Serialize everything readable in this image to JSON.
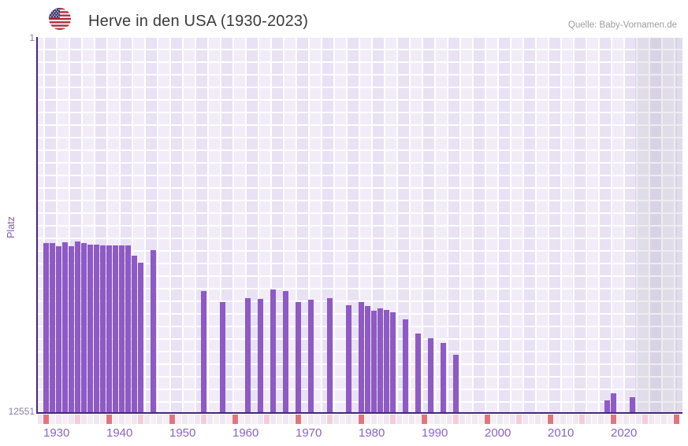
{
  "header": {
    "title": "Herve in den USA (1930-2023)",
    "source": "Quelle: Baby-Vornamen.de",
    "flag_icon": "us-flag-icon"
  },
  "chart_data": {
    "type": "bar",
    "title": "Herve in den USA (1930-2023)",
    "ylabel": "Platz",
    "xlabel": "",
    "y_axis": {
      "min": 1,
      "max": 12551,
      "inverted": true,
      "top_tick": "1",
      "bottom_tick": "12551"
    },
    "x_tick_labels": [
      "1930",
      "1940",
      "1950",
      "1960",
      "1970",
      "1980",
      "1990",
      "2000",
      "2010",
      "2020"
    ],
    "x_range": [
      1930,
      2030
    ],
    "future_region_start": 2024,
    "legend": "none",
    "grid": "plaid-lavender",
    "colors": {
      "bar": "#8e5ac4",
      "axis": "#44277d",
      "decade_marker": "#e5737e",
      "half_decade_marker": "#f3ccd9",
      "grid_light": "#f2ecf9",
      "grid_dark": "#e9e1f4",
      "x_tick_text": "#8a63c3",
      "y_tick_text": "#8d7aab"
    },
    "points": [
      {
        "year": 1930,
        "rank": 6870
      },
      {
        "year": 1931,
        "rank": 6870
      },
      {
        "year": 1932,
        "rank": 6975
      },
      {
        "year": 1933,
        "rank": 6845
      },
      {
        "year": 1934,
        "rank": 6975
      },
      {
        "year": 1935,
        "rank": 6820
      },
      {
        "year": 1936,
        "rank": 6895
      },
      {
        "year": 1937,
        "rank": 6925
      },
      {
        "year": 1938,
        "rank": 6925
      },
      {
        "year": 1939,
        "rank": 6950
      },
      {
        "year": 1940,
        "rank": 6950
      },
      {
        "year": 1941,
        "rank": 6950
      },
      {
        "year": 1942,
        "rank": 6950
      },
      {
        "year": 1943,
        "rank": 6950
      },
      {
        "year": 1944,
        "rank": 7295
      },
      {
        "year": 1945,
        "rank": 7530
      },
      {
        "year": 1947,
        "rank": 7110
      },
      {
        "year": 1955,
        "rank": 8480
      },
      {
        "year": 1958,
        "rank": 8860
      },
      {
        "year": 1962,
        "rank": 8740
      },
      {
        "year": 1964,
        "rank": 8755
      },
      {
        "year": 1966,
        "rank": 8450
      },
      {
        "year": 1968,
        "rank": 8500
      },
      {
        "year": 1970,
        "rank": 8870
      },
      {
        "year": 1972,
        "rank": 8770
      },
      {
        "year": 1975,
        "rank": 8740
      },
      {
        "year": 1978,
        "rank": 8975
      },
      {
        "year": 1980,
        "rank": 8860
      },
      {
        "year": 1981,
        "rank": 8990
      },
      {
        "year": 1982,
        "rank": 9145
      },
      {
        "year": 1983,
        "rank": 9070
      },
      {
        "year": 1984,
        "rank": 9125
      },
      {
        "year": 1985,
        "rank": 9215
      },
      {
        "year": 1987,
        "rank": 9435
      },
      {
        "year": 1989,
        "rank": 9915
      },
      {
        "year": 1991,
        "rank": 10060
      },
      {
        "year": 1993,
        "rank": 10225
      },
      {
        "year": 1995,
        "rank": 10620
      },
      {
        "year": 2019,
        "rank": 12145
      },
      {
        "year": 2020,
        "rank": 11925
      },
      {
        "year": 2023,
        "rank": 12055
      }
    ]
  }
}
